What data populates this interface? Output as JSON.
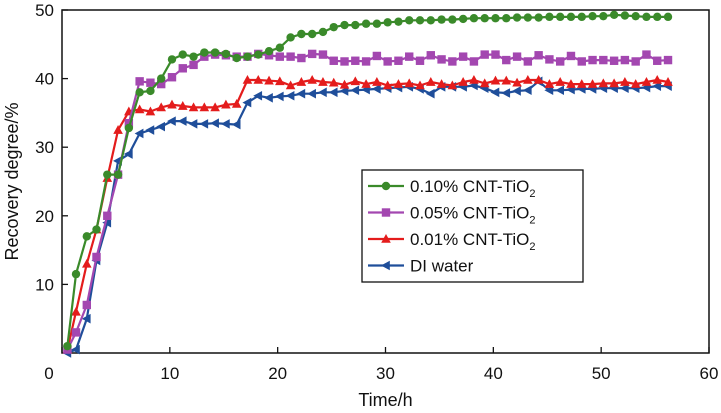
{
  "chart_data": {
    "type": "line",
    "title": "",
    "xlabel": "Time/h",
    "ylabel": "Recovery degree/%",
    "xlim": [
      0,
      60
    ],
    "ylim": [
      0,
      50
    ],
    "xticks": [
      "0",
      "10",
      "20",
      "30",
      "40",
      "50",
      "60"
    ],
    "yticks": [
      "10",
      "20",
      "30",
      "40",
      "50"
    ],
    "grid": false,
    "legend_position": "center-right",
    "series": [
      {
        "name": "0.10% CNT-TiO",
        "name_subscript": "2",
        "color": "#3a8a2a",
        "marker": "circle",
        "x": [
          0.5,
          1.3,
          2.3,
          3.2,
          4.2,
          5.2,
          6.2,
          7.2,
          8.2,
          9.2,
          10.2,
          11.2,
          12.2,
          13.2,
          14.2,
          15.2,
          16.2,
          17.2,
          18.2,
          19.2,
          20.2,
          21.2,
          22.2,
          23.2,
          24.2,
          25.2,
          26.2,
          27.2,
          28.2,
          29.2,
          30.2,
          31.2,
          32.2,
          33.2,
          34.2,
          35.2,
          36.2,
          37.2,
          38.2,
          39.2,
          40.2,
          41.2,
          42.2,
          43.2,
          44.2,
          45.2,
          46.2,
          47.2,
          48.2,
          49.2,
          50.2,
          51.2,
          52.2,
          53.2,
          54.2,
          55.2,
          56.2
        ],
        "values": [
          1.0,
          11.5,
          17.0,
          18.0,
          26.0,
          26.0,
          32.8,
          38.0,
          38.2,
          40.0,
          42.8,
          43.5,
          43.2,
          43.8,
          43.8,
          43.6,
          43.0,
          43.2,
          43.5,
          44.0,
          44.5,
          46.0,
          46.5,
          46.5,
          46.8,
          47.5,
          47.8,
          47.8,
          48.0,
          48.0,
          48.2,
          48.3,
          48.5,
          48.5,
          48.5,
          48.6,
          48.6,
          48.7,
          48.8,
          48.8,
          48.8,
          48.8,
          48.9,
          48.9,
          48.9,
          49.0,
          49.0,
          49.0,
          49.0,
          49.1,
          49.1,
          49.3,
          49.2,
          49.1,
          49.0,
          49.0,
          49.0
        ]
      },
      {
        "name": "0.05% CNT-TiO",
        "name_subscript": "2",
        "color": "#a347b0",
        "marker": "square",
        "x": [
          0.5,
          1.3,
          2.3,
          3.2,
          4.2,
          5.2,
          6.2,
          7.2,
          8.2,
          9.2,
          10.2,
          11.2,
          12.2,
          13.2,
          14.2,
          15.2,
          16.2,
          17.2,
          18.2,
          19.2,
          20.2,
          21.2,
          22.2,
          23.2,
          24.2,
          25.2,
          26.2,
          27.2,
          28.2,
          29.2,
          30.2,
          31.2,
          32.2,
          33.2,
          34.2,
          35.2,
          36.2,
          37.2,
          38.2,
          39.2,
          40.2,
          41.2,
          42.2,
          43.2,
          44.2,
          45.2,
          46.2,
          47.2,
          48.2,
          49.2,
          50.2,
          51.2,
          52.2,
          53.2,
          54.2,
          55.2,
          56.2
        ],
        "values": [
          0.5,
          3.0,
          7.0,
          14.0,
          20.0,
          26.0,
          33.5,
          39.6,
          39.4,
          39.2,
          40.2,
          41.5,
          42.0,
          43.2,
          43.5,
          43.4,
          43.2,
          43.2,
          43.6,
          43.4,
          43.2,
          43.2,
          43.0,
          43.6,
          43.5,
          42.6,
          42.5,
          42.6,
          42.5,
          43.3,
          42.5,
          42.6,
          43.2,
          42.6,
          43.4,
          42.8,
          42.5,
          43.2,
          42.5,
          43.5,
          43.5,
          42.7,
          43.2,
          42.5,
          43.4,
          42.8,
          42.5,
          43.3,
          42.5,
          42.7,
          42.7,
          42.6,
          42.7,
          42.5,
          43.5,
          42.6,
          42.7
        ]
      },
      {
        "name": "0.01% CNT-TiO",
        "name_subscript": "2",
        "color": "#e41c1c",
        "marker": "triangle",
        "x": [
          0.5,
          1.3,
          2.3,
          3.2,
          4.2,
          5.2,
          6.2,
          7.2,
          8.2,
          9.2,
          10.2,
          11.2,
          12.2,
          13.2,
          14.2,
          15.2,
          16.2,
          17.2,
          18.2,
          19.2,
          20.2,
          21.2,
          22.2,
          23.2,
          24.2,
          25.2,
          26.2,
          27.2,
          28.2,
          29.2,
          30.2,
          31.2,
          32.2,
          33.2,
          34.2,
          35.2,
          36.2,
          37.2,
          38.2,
          39.2,
          40.2,
          41.2,
          42.2,
          43.2,
          44.2,
          45.2,
          46.2,
          47.2,
          48.2,
          49.2,
          50.2,
          51.2,
          52.2,
          53.2,
          54.2,
          55.2,
          56.2
        ],
        "values": [
          0.5,
          6.0,
          13.0,
          18.0,
          25.5,
          32.5,
          35.2,
          35.5,
          35.2,
          35.8,
          36.2,
          36.0,
          35.8,
          35.8,
          35.8,
          36.2,
          36.3,
          39.8,
          39.8,
          39.7,
          39.6,
          39.0,
          39.5,
          39.8,
          39.5,
          39.4,
          39.1,
          39.6,
          39.2,
          39.5,
          39.0,
          39.2,
          39.3,
          39.0,
          39.5,
          39.2,
          39.0,
          39.5,
          39.8,
          39.3,
          39.7,
          39.7,
          39.4,
          39.8,
          39.8,
          39.2,
          39.5,
          39.2,
          39.2,
          39.2,
          39.3,
          39.3,
          39.5,
          39.2,
          39.5,
          39.8,
          39.5
        ]
      },
      {
        "name": "DI water",
        "color": "#1f4e9a",
        "marker": "triangle-left",
        "x": [
          0.5,
          1.3,
          2.3,
          3.2,
          4.2,
          5.2,
          6.2,
          7.2,
          8.2,
          9.2,
          10.2,
          11.2,
          12.2,
          13.2,
          14.2,
          15.2,
          16.2,
          17.2,
          18.2,
          19.2,
          20.2,
          21.2,
          22.2,
          23.2,
          24.2,
          25.2,
          26.2,
          27.2,
          28.2,
          29.2,
          30.2,
          31.2,
          32.2,
          33.2,
          34.2,
          35.2,
          36.2,
          37.2,
          38.2,
          39.2,
          40.2,
          41.2,
          42.2,
          43.2,
          44.2,
          45.2,
          46.2,
          47.2,
          48.2,
          49.2,
          50.2,
          51.2,
          52.2,
          53.2,
          54.2,
          55.2,
          56.2
        ],
        "values": [
          0.0,
          0.5,
          5.0,
          13.5,
          19.0,
          28.0,
          29.0,
          32.0,
          32.5,
          33.0,
          33.8,
          33.8,
          33.4,
          33.4,
          33.5,
          33.4,
          33.3,
          36.5,
          37.5,
          37.2,
          37.4,
          37.5,
          37.8,
          37.8,
          38.0,
          38.0,
          38.2,
          38.3,
          38.4,
          38.5,
          38.6,
          38.7,
          38.8,
          38.5,
          37.8,
          38.8,
          38.8,
          38.8,
          39.0,
          38.6,
          38.0,
          37.9,
          38.2,
          38.3,
          39.6,
          38.3,
          38.3,
          38.4,
          38.5,
          38.5,
          38.6,
          38.6,
          38.6,
          38.6,
          38.7,
          38.9,
          38.9
        ]
      }
    ]
  }
}
